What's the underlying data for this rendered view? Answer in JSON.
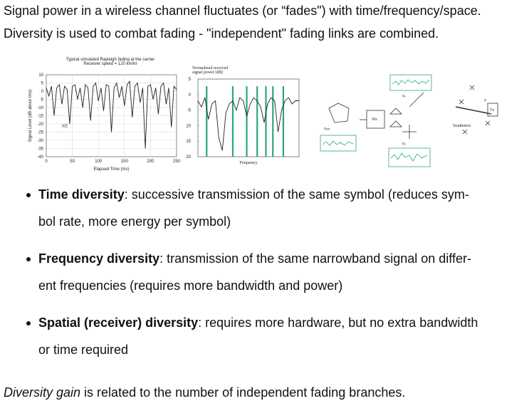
{
  "intro": [
    "Signal power in a wireless channel fluctuates (or “fades\") with time/frequency/space.",
    "Diversity is used to combat fading - \"independent\" fading links are combined."
  ],
  "figures": [
    {
      "chart_data": {
        "type": "line",
        "title": [
          "Typical simulated Rayleigh fading at the carrier",
          "Receiver speed = 120 km/hr"
        ],
        "x_label": "Elapsed Time (ms)",
        "y_label": "Signal Level (dB about rms)",
        "annotation": "λ/2",
        "color": "#222222",
        "grid": true,
        "xlim": [
          0,
          250
        ],
        "xticks": [
          0,
          50,
          100,
          150,
          200,
          250
        ],
        "ylim": [
          -40,
          10
        ],
        "yticks": [
          10,
          5,
          0,
          -5,
          -10,
          -15,
          -20,
          -25,
          -30,
          -35,
          -40
        ],
        "x": [
          0,
          5,
          10,
          15,
          20,
          25,
          30,
          35,
          40,
          45,
          50,
          55,
          60,
          65,
          70,
          75,
          80,
          85,
          90,
          95,
          100,
          105,
          110,
          115,
          120,
          125,
          130,
          135,
          140,
          145,
          150,
          155,
          160,
          165,
          170,
          175,
          180,
          185,
          190,
          195,
          200,
          205,
          210,
          215,
          220,
          225,
          230,
          235,
          240,
          245,
          250
        ],
        "values": [
          2,
          -3,
          3,
          -15,
          2,
          4,
          -8,
          3,
          1,
          -20,
          3,
          4,
          -5,
          2,
          -10,
          4,
          2,
          -18,
          3,
          5,
          -6,
          2,
          -12,
          4,
          3,
          -25,
          2,
          5,
          -4,
          3,
          -9,
          4,
          6,
          -16,
          3,
          5,
          -7,
          2,
          -35,
          3,
          4,
          -5,
          2,
          -14,
          3,
          5,
          -8,
          2,
          -22,
          3,
          1
        ]
      }
    },
    {
      "chart_data": {
        "type": "line",
        "title": [
          "Normalized received",
          "signal power [dB]"
        ],
        "x_label": "Frequency",
        "color": "#222222",
        "branch_color": "#2aa876",
        "xlim": [
          0,
          29
        ],
        "ylim": [
          20,
          -5
        ],
        "yticks": [
          {
            "value": -5,
            "label": "5"
          },
          0,
          {
            "value": 5,
            "label": "-5"
          },
          10,
          15,
          20
        ],
        "x": [
          0,
          1,
          2,
          3,
          4,
          5,
          6,
          7,
          8,
          9,
          10,
          11,
          12,
          13,
          14,
          15,
          16,
          17,
          18,
          19,
          20,
          21,
          22,
          23,
          24,
          25,
          26,
          27,
          28,
          29
        ],
        "values": [
          2,
          4,
          1,
          8,
          3,
          2,
          14,
          18,
          6,
          3,
          2,
          5,
          1,
          2,
          7,
          3,
          1,
          2,
          4,
          9,
          3,
          1,
          2,
          12,
          5,
          2,
          1,
          3,
          2,
          2
        ],
        "branches": [
          2.5,
          10,
          14,
          17,
          19.5,
          21.5,
          24.5
        ]
      }
    }
  ],
  "diagram": {
    "rx": "Rx",
    "tx": "Tx",
    "scatterers": "Scatterers",
    "s1": "s₁",
    "s2": "s₂",
    "sout": "sₒᵤₜ",
    "s": "s"
  },
  "bullets": [
    {
      "term": "Time diversity",
      "lines": [
        ": successive transmission of the same symbol (reduces sym-",
        "bol rate, more energy per symbol)"
      ]
    },
    {
      "term": "Frequency diversity",
      "lines": [
        ": transmission of the same narrowband signal on differ-",
        "ent frequencies (requires more bandwidth and power)"
      ]
    },
    {
      "term": "Spatial (receiver) diversity",
      "lines": [
        ": requires more hardware, but no extra bandwidth",
        "or time required"
      ]
    }
  ],
  "closing": {
    "emphasis": "Diversity gain",
    "text": " is related to the number of independent fading branches."
  }
}
